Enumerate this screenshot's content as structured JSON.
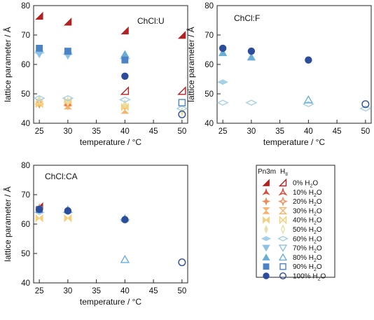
{
  "chart_data": [
    {
      "type": "scatter",
      "title": "ChCl:U",
      "xlabel": "temperature / °C",
      "ylabel": "lattice parameter / Å",
      "xlim": [
        24,
        51
      ],
      "ylim": [
        40,
        80
      ],
      "xticks": [
        25,
        30,
        35,
        40,
        45,
        50
      ],
      "yticks": [
        40,
        50,
        60,
        70,
        80
      ],
      "series": [
        {
          "legend_index": 0,
          "phase": "Pn3m",
          "points": [
            [
              25,
              76.5
            ],
            [
              30,
              74.5
            ],
            [
              40,
              71.5
            ],
            [
              50,
              70
            ]
          ]
        },
        {
          "legend_index": 0,
          "phase": "HII",
          "points": [
            [
              40,
              51
            ],
            [
              50,
              51
            ]
          ]
        },
        {
          "legend_index": 1,
          "phase": "Pn3m",
          "points": [
            [
              25,
              47.5
            ],
            [
              30,
              47
            ]
          ]
        },
        {
          "legend_index": 2,
          "phase": "Pn3m",
          "points": [
            [
              25,
              46.5
            ],
            [
              30,
              46
            ]
          ]
        },
        {
          "legend_index": 3,
          "phase": "Pn3m",
          "points": [
            [
              25,
              47
            ],
            [
              30,
              46
            ],
            [
              40,
              44.5
            ]
          ]
        },
        {
          "legend_index": 4,
          "phase": "Pn3m",
          "points": [
            [
              25,
              46.5
            ],
            [
              30,
              47.5
            ],
            [
              40,
              45.5
            ]
          ]
        },
        {
          "legend_index": 5,
          "phase": "Pn3m",
          "points": [
            [
              25,
              48
            ],
            [
              30,
              47.5
            ],
            [
              40,
              46.5
            ],
            [
              50,
              44
            ]
          ]
        },
        {
          "legend_index": 6,
          "phase": "Pn3m",
          "points": [
            [
              25,
              64
            ],
            [
              30,
              63.5
            ],
            [
              40,
              62
            ]
          ]
        },
        {
          "legend_index": 6,
          "phase": "HII",
          "points": [
            [
              25,
              48.5
            ],
            [
              30,
              48.5
            ],
            [
              40,
              48
            ],
            [
              50,
              45
            ]
          ]
        },
        {
          "legend_index": 7,
          "phase": "Pn3m",
          "points": [
            [
              25,
              63.5
            ],
            [
              30,
              63
            ]
          ]
        },
        {
          "legend_index": 8,
          "phase": "Pn3m",
          "points": [
            [
              40,
              63.5
            ]
          ]
        },
        {
          "legend_index": 9,
          "phase": "Pn3m",
          "points": [
            [
              25,
              65.5
            ],
            [
              30,
              64.5
            ],
            [
              40,
              61.5
            ]
          ]
        },
        {
          "legend_index": 9,
          "phase": "HII",
          "points": [
            [
              50,
              47
            ]
          ]
        },
        {
          "legend_index": 10,
          "phase": "Pn3m",
          "points": [
            [
              40,
              56
            ]
          ]
        },
        {
          "legend_index": 10,
          "phase": "HII",
          "points": [
            [
              50,
              43
            ]
          ]
        }
      ]
    },
    {
      "type": "scatter",
      "title": "ChCl:F",
      "xlabel": "temperature / °C",
      "ylabel": "lattice parameter / Å",
      "xlim": [
        24,
        51
      ],
      "ylim": [
        40,
        80
      ],
      "xticks": [
        25,
        30,
        35,
        40,
        45,
        50
      ],
      "yticks": [
        40,
        50,
        60,
        70,
        80
      ],
      "series": [
        {
          "legend_index": 6,
          "phase": "Pn3m",
          "points": [
            [
              25,
              54
            ]
          ]
        },
        {
          "legend_index": 6,
          "phase": "HII",
          "points": [
            [
              25,
              47
            ],
            [
              30,
              47
            ],
            [
              40,
              46.5
            ],
            [
              50,
              45
            ]
          ]
        },
        {
          "legend_index": 8,
          "phase": "Pn3m",
          "points": [
            [
              25,
              64
            ],
            [
              30,
              62.5
            ]
          ]
        },
        {
          "legend_index": 8,
          "phase": "HII",
          "points": [
            [
              40,
              48
            ]
          ]
        },
        {
          "legend_index": 10,
          "phase": "Pn3m",
          "points": [
            [
              25,
              65.5
            ],
            [
              30,
              64.5
            ],
            [
              40,
              61.5
            ]
          ]
        },
        {
          "legend_index": 10,
          "phase": "HII",
          "points": [
            [
              50,
              46.5
            ]
          ]
        }
      ]
    },
    {
      "type": "scatter",
      "title": "ChCl:CA",
      "xlabel": "temperature / °C",
      "ylabel": "lattice parameter / Å",
      "xlim": [
        24,
        51
      ],
      "ylim": [
        40,
        80
      ],
      "xticks": [
        25,
        30,
        35,
        40,
        45,
        50
      ],
      "yticks": [
        40,
        50,
        60,
        70,
        80
      ],
      "series": [
        {
          "legend_index": 0,
          "phase": "Pn3m",
          "points": [
            [
              25,
              66
            ]
          ]
        },
        {
          "legend_index": 2,
          "phase": "Pn3m",
          "points": [
            [
              25,
              65.5
            ]
          ]
        },
        {
          "legend_index": 4,
          "phase": "Pn3m",
          "points": [
            [
              25,
              62
            ],
            [
              30,
              62
            ]
          ]
        },
        {
          "legend_index": 6,
          "phase": "Pn3m",
          "points": [
            [
              25,
              64
            ],
            [
              30,
              64
            ],
            [
              40,
              61.5
            ]
          ]
        },
        {
          "legend_index": 8,
          "phase": "Pn3m",
          "points": [
            [
              30,
              65
            ],
            [
              40,
              62
            ]
          ]
        },
        {
          "legend_index": 8,
          "phase": "HII",
          "points": [
            [
              40,
              48
            ]
          ]
        },
        {
          "legend_index": 9,
          "phase": "Pn3m",
          "points": [
            [
              25,
              65
            ]
          ]
        },
        {
          "legend_index": 10,
          "phase": "Pn3m",
          "points": [
            [
              25,
              65
            ],
            [
              30,
              64.5
            ],
            [
              40,
              61.5
            ]
          ]
        },
        {
          "legend_index": 10,
          "phase": "HII",
          "points": [
            [
              50,
              47
            ]
          ]
        }
      ]
    }
  ],
  "legend": {
    "header_pn3m": "Pn3m",
    "header_hii": "H",
    "header_hii_sub": "II",
    "entries": [
      {
        "label": "0% H",
        "sub": "2",
        "tail": "O",
        "color": "#b22222",
        "marker": "wedge"
      },
      {
        "label": "10% H",
        "sub": "2",
        "tail": "O",
        "color": "#d84a3a",
        "marker": "tri3"
      },
      {
        "label": "20% H",
        "sub": "2",
        "tail": "O",
        "color": "#ee8a55",
        "marker": "star4"
      },
      {
        "label": "30% H",
        "sub": "2",
        "tail": "O",
        "color": "#f5b46e",
        "marker": "hourglass"
      },
      {
        "label": "40% H",
        "sub": "2",
        "tail": "O",
        "color": "#f7cf7a",
        "marker": "bowtie"
      },
      {
        "label": "50% H",
        "sub": "2",
        "tail": "O",
        "color": "#e9dfa8",
        "marker": "diamond_thin"
      },
      {
        "label": "60% H",
        "sub": "2",
        "tail": "O",
        "color": "#a6d0e6",
        "marker": "diamond_wide"
      },
      {
        "label": "70% H",
        "sub": "2",
        "tail": "O",
        "color": "#8cc2e4",
        "marker": "tri_down"
      },
      {
        "label": "80% H",
        "sub": "2",
        "tail": "O",
        "color": "#6aaed8",
        "marker": "tri_up"
      },
      {
        "label": "90% H",
        "sub": "2",
        "tail": "O",
        "color": "#4a84c4",
        "marker": "square"
      },
      {
        "label": "100% H",
        "sub": "2",
        "tail": "O",
        "color": "#2b4d9c",
        "marker": "circle"
      }
    ]
  }
}
